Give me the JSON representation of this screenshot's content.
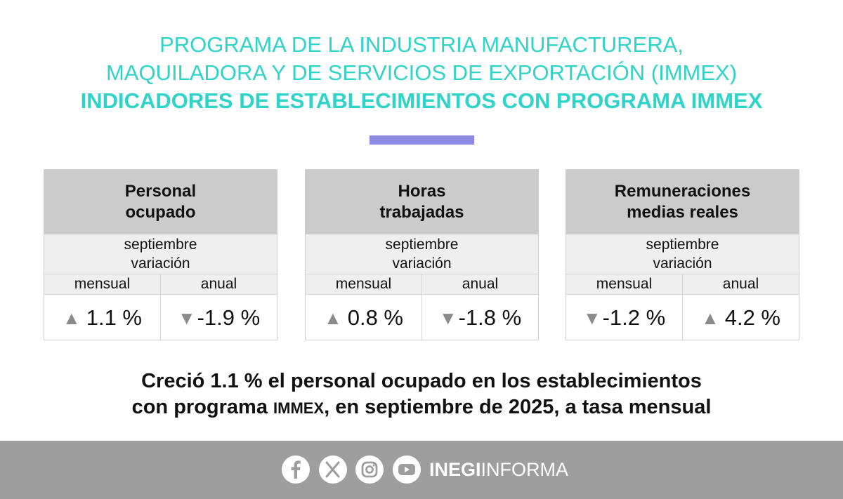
{
  "header": {
    "line1": "PROGRAMA DE LA INDUSTRIA MANUFACTURERA,",
    "line2": "MAQUILADORA Y DE SERVICIOS DE EXPORTACIÓN (IMMEX)",
    "line3": "INDICADORES DE ESTABLECIMIENTOS CON PROGRAMA IMMEX"
  },
  "colors": {
    "title": "#2fd3c8",
    "accent_bar": "#8d8be6",
    "footer": "#9e9e9e",
    "arrow": "#8b8b8b"
  },
  "cards": [
    {
      "title_line1": "Personal",
      "title_line2": "ocupado",
      "sub_line1": "septiembre",
      "sub_line2": "variación",
      "col1": "mensual",
      "col2": "anual",
      "val1_arrow": "▲",
      "val1": "1.1 %",
      "val2_arrow": "▼",
      "val2": "-1.9 %"
    },
    {
      "title_line1": "Horas",
      "title_line2": "trabajadas",
      "sub_line1": "septiembre",
      "sub_line2": "variación",
      "col1": "mensual",
      "col2": "anual",
      "val1_arrow": "▲",
      "val1": "0.8 %",
      "val2_arrow": "▼",
      "val2": "-1.8 %"
    },
    {
      "title_line1": "Remuneraciones",
      "title_line2": "medias reales",
      "sub_line1": "septiembre",
      "sub_line2": "variación",
      "col1": "mensual",
      "col2": "anual",
      "val1_arrow": "▼",
      "val1": "-1.2 %",
      "val2_arrow": "▲",
      "val2": "4.2 %"
    }
  ],
  "headline": {
    "line1": "Creció 1.1 % el personal ocupado en los establecimientos",
    "line2_a": "con programa ",
    "line2_b": "IMMEX",
    "line2_c": ", en septiembre de 2025, a tasa mensual"
  },
  "footer": {
    "icons": [
      "facebook-icon",
      "x-icon",
      "instagram-icon",
      "youtube-icon"
    ],
    "brand_bold": "INEGI",
    "brand_rest": "INFORMA"
  }
}
